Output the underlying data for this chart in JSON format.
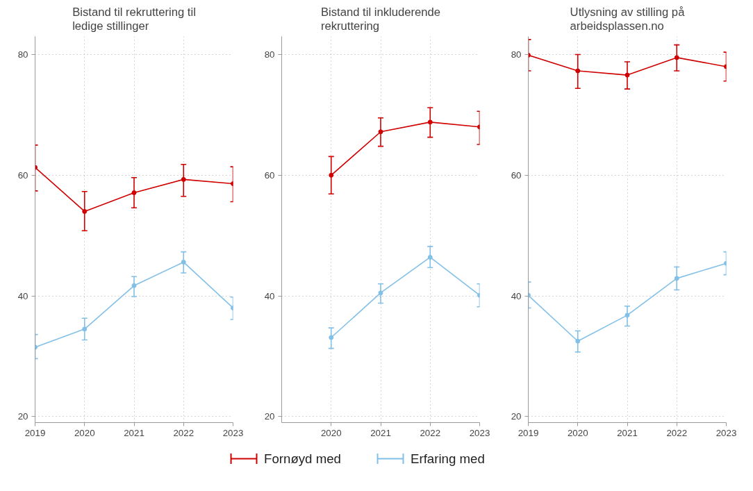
{
  "chart_data": [
    {
      "type": "line",
      "title": "Bistand til rekruttering til\nledige stillinger",
      "x": [
        2019,
        2020,
        2021,
        2022,
        2023
      ],
      "xlim": [
        2019,
        2023
      ],
      "xticks": [
        2019,
        2020,
        2021,
        2022,
        2023
      ],
      "ylim": [
        19,
        83
      ],
      "yticks": [
        20,
        40,
        60,
        80
      ],
      "grid": true,
      "marker": "circle",
      "legend": "bottom",
      "series": [
        {
          "name": "Fornøyd med",
          "color": "#d00000",
          "values": [
            61.3,
            54.0,
            57.1,
            59.3,
            58.6
          ],
          "errors": [
            [
              57.4,
              65.0
            ],
            [
              50.8,
              57.3
            ],
            [
              54.6,
              59.6
            ],
            [
              56.5,
              61.8
            ],
            [
              55.6,
              61.4
            ]
          ]
        },
        {
          "name": "Erfaring med",
          "color": "#82c0e8",
          "values": [
            31.5,
            34.5,
            41.7,
            45.6,
            38.0
          ],
          "errors": [
            [
              29.6,
              33.6
            ],
            [
              32.7,
              36.3
            ],
            [
              39.9,
              43.2
            ],
            [
              43.8,
              47.3
            ],
            [
              36.1,
              39.8
            ]
          ]
        }
      ]
    },
    {
      "type": "line",
      "title": "Bistand til inkluderende\nrekruttering",
      "x": [
        2020,
        2021,
        2022,
        2023
      ],
      "xlim": [
        2019,
        2023
      ],
      "xticks": [
        2020,
        2021,
        2022,
        2023
      ],
      "ylim": [
        19,
        83
      ],
      "yticks": [
        20,
        40,
        60,
        80
      ],
      "grid": true,
      "marker": "circle",
      "series": [
        {
          "color": "#d00000",
          "values": [
            60.0,
            67.2,
            68.8,
            68.0
          ],
          "errors": [
            [
              56.9,
              63.1
            ],
            [
              64.8,
              69.5
            ],
            [
              66.3,
              71.2
            ],
            [
              65.1,
              70.6
            ]
          ]
        },
        {
          "color": "#82c0e8",
          "values": [
            33.1,
            40.5,
            46.4,
            40.1
          ],
          "errors": [
            [
              31.3,
              34.7
            ],
            [
              38.8,
              42.0
            ],
            [
              44.7,
              48.2
            ],
            [
              38.2,
              42.0
            ]
          ]
        }
      ]
    },
    {
      "type": "line",
      "title": "Utlysning av stilling på\narbeidsplassen.no",
      "x": [
        2019,
        2020,
        2021,
        2022,
        2023
      ],
      "xlim": [
        2019,
        2023
      ],
      "xticks": [
        2019,
        2020,
        2021,
        2022,
        2023
      ],
      "ylim": [
        19,
        83
      ],
      "yticks": [
        20,
        40,
        60,
        80
      ],
      "grid": true,
      "marker": "circle",
      "series": [
        {
          "color": "#d00000",
          "values": [
            79.9,
            77.3,
            76.6,
            79.5,
            78.0
          ],
          "errors": [
            [
              77.3,
              82.5
            ],
            [
              74.4,
              80.0
            ],
            [
              74.3,
              78.8
            ],
            [
              77.3,
              81.6
            ],
            [
              75.6,
              80.4
            ]
          ]
        },
        {
          "color": "#82c0e8",
          "values": [
            40.1,
            32.5,
            36.8,
            42.9,
            45.4
          ],
          "errors": [
            [
              38.0,
              42.3
            ],
            [
              30.7,
              34.2
            ],
            [
              35.0,
              38.3
            ],
            [
              41.0,
              44.8
            ],
            [
              43.5,
              47.3
            ]
          ]
        }
      ]
    }
  ]
}
